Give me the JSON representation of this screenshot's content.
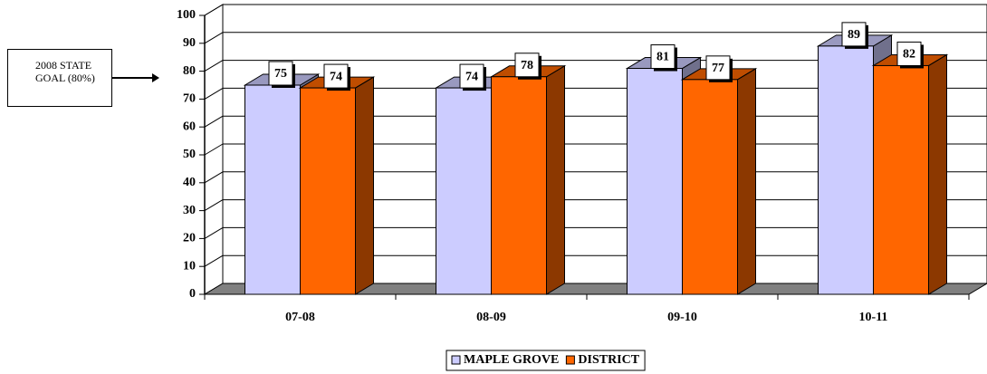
{
  "chart_data": {
    "type": "bar",
    "categories": [
      "07-08",
      "08-09",
      "09-10",
      "10-11"
    ],
    "series": [
      {
        "name": "MAPLE GROVE",
        "color": "#ccccff",
        "values": [
          75,
          74,
          81,
          89
        ]
      },
      {
        "name": "DISTRICT",
        "color": "#ff6600",
        "values": [
          74,
          78,
          77,
          82
        ]
      }
    ],
    "ylim": [
      0,
      100
    ],
    "yticks": [
      0,
      10,
      20,
      30,
      40,
      50,
      60,
      70,
      80,
      90,
      100
    ],
    "grid": true,
    "annotation": "2008 STATE GOAL (80%)",
    "legend": "bottom"
  }
}
